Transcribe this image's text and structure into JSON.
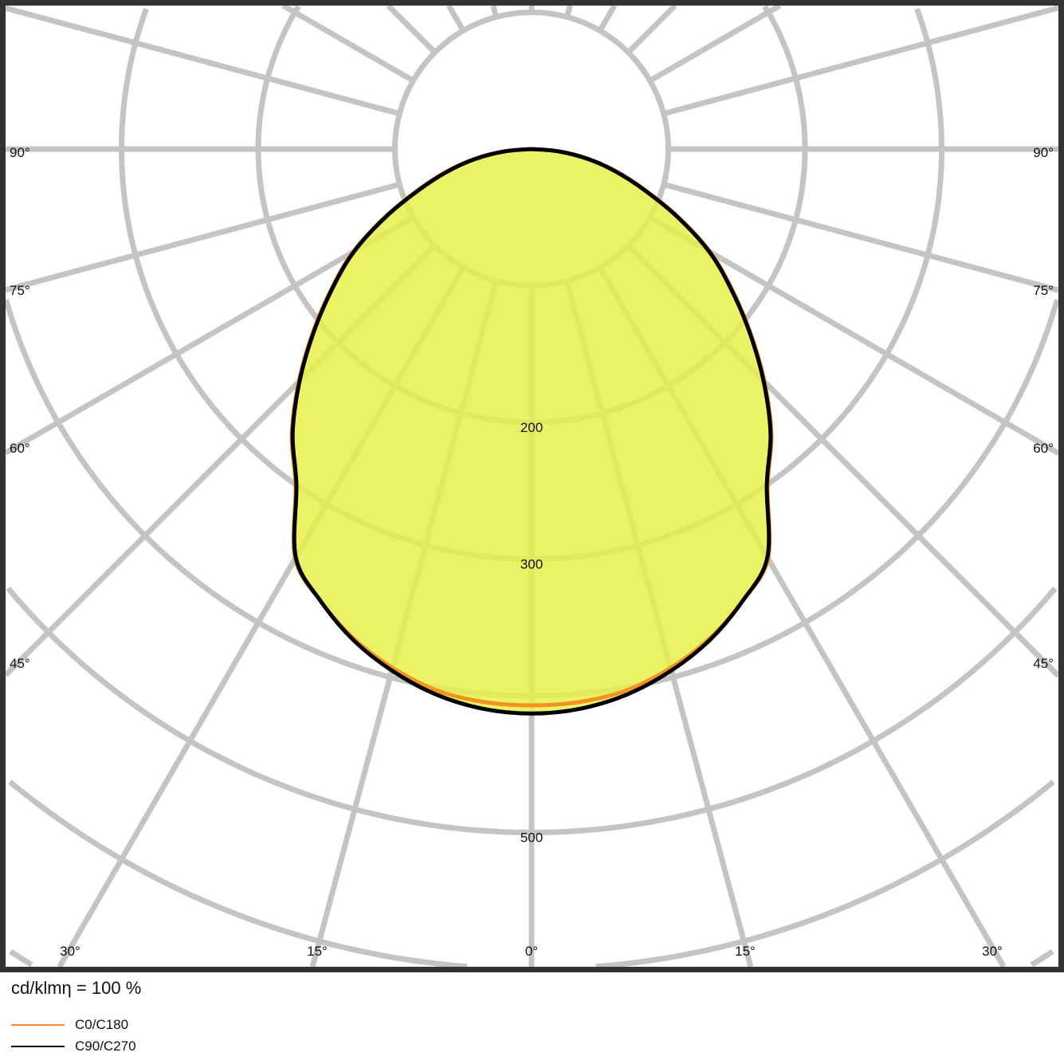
{
  "chart_data": {
    "type": "polar",
    "unit_label": "cd/klmη = 100 %",
    "radial_ticks": [
      100,
      200,
      300,
      400,
      500,
      600,
      700,
      800
    ],
    "radial_tick_labels": [
      {
        "value": 200,
        "label": "200"
      },
      {
        "value": 300,
        "label": "300"
      },
      {
        "value": 500,
        "label": "500"
      }
    ],
    "angle_step": 15,
    "angle_labels_side": [
      "90°",
      "75°",
      "60°",
      "45°"
    ],
    "angle_labels_bottom": [
      "30°",
      "15°",
      "0°",
      "15°",
      "30°"
    ],
    "gamma": [
      0,
      5,
      10,
      15,
      20,
      25,
      30,
      35,
      40,
      45,
      50,
      55,
      60,
      65,
      70,
      75,
      80,
      85,
      90
    ],
    "series": [
      {
        "name": "C0/C180",
        "color": "#f39322",
        "values": [
          407,
          406,
          402,
          393,
          381,
          365,
          346,
          301,
          273,
          241,
          209,
          179,
          151,
          119,
          89,
          65,
          43,
          21,
          0
        ]
      },
      {
        "name": "C90/C270",
        "color": "#000000",
        "values": [
          413,
          411,
          405,
          395,
          382,
          365,
          345,
          300,
          272,
          240,
          208,
          178,
          150,
          118,
          88,
          64,
          42,
          20,
          0
        ]
      }
    ],
    "fill_color": "#e8f04a",
    "grid_color": "#c4c4c4",
    "grid": true,
    "legend_position": "bottom-left"
  }
}
